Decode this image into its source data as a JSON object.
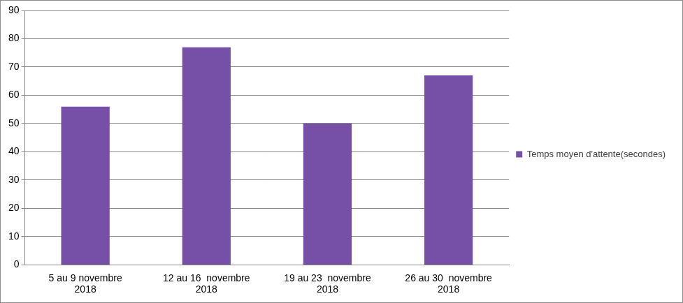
{
  "chart_data": {
    "type": "bar",
    "categories": [
      [
        "5 au 9 novembre",
        "2018"
      ],
      [
        "12 au 16  novembre",
        "2018"
      ],
      [
        "19 au 23  novembre",
        "2018"
      ],
      [
        "26 au 30  novembre",
        "2018"
      ]
    ],
    "series": [
      {
        "name": "Temps moyen d'attente(secondes)",
        "color": "#7550a6",
        "values": [
          56,
          77,
          50,
          67
        ]
      }
    ],
    "ylim": [
      0,
      90
    ],
    "yticks": [
      0,
      10,
      20,
      30,
      40,
      50,
      60,
      70,
      80,
      90
    ],
    "grid": true,
    "legend": "right"
  }
}
